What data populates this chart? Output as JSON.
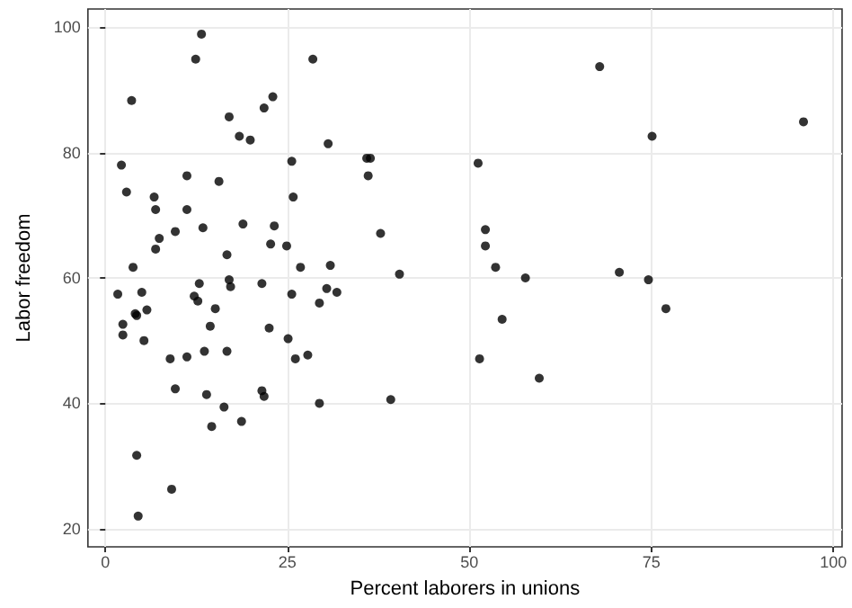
{
  "chart_data": {
    "type": "scatter",
    "xlabel": "Percent laborers in unions",
    "ylabel": "Labor freedom",
    "xlim": [
      -2.4,
      101.2
    ],
    "ylim": [
      17.1,
      102.9
    ],
    "xticks": [
      0,
      25,
      50,
      75,
      100
    ],
    "yticks": [
      20,
      40,
      60,
      80,
      100
    ],
    "grid": true,
    "marker": "circle",
    "series": [
      {
        "color": "#000000",
        "x": [
          13.2,
          12.4,
          28.5,
          3.6,
          23.0,
          21.8,
          17.0,
          18.4,
          19.9,
          30.6,
          2.2,
          25.6,
          35.9,
          36.4,
          36.1,
          51.2,
          2.9,
          6.7,
          11.2,
          15.6,
          6.9,
          25.8,
          11.2,
          9.6,
          13.4,
          18.9,
          23.2,
          7.4,
          6.9,
          22.7,
          24.9,
          16.7,
          3.8,
          26.8,
          30.9,
          37.8,
          52.2,
          52.2,
          53.6,
          40.4,
          57.7,
          70.6,
          74.6,
          77.0,
          67.9,
          75.1,
          95.9,
          12.9,
          17.0,
          17.2,
          21.5,
          1.7,
          5.0,
          12.2,
          12.7,
          25.6,
          30.4,
          31.8,
          29.4,
          4.1,
          4.3,
          5.7,
          15.1,
          2.4,
          2.4,
          5.3,
          14.4,
          22.5,
          25.1,
          8.9,
          11.2,
          13.6,
          16.7,
          26.1,
          27.8,
          9.6,
          13.9,
          21.5,
          21.8,
          16.3,
          29.4,
          14.6,
          18.7,
          4.3,
          9.1,
          4.5,
          51.4,
          59.6,
          39.2,
          54.5
        ],
        "values": [
          98.9,
          94.9,
          94.9,
          88.3,
          88.9,
          87.1,
          85.7,
          82.6,
          82.0,
          81.4,
          78.0,
          78.6,
          79.1,
          79.1,
          76.3,
          78.3,
          73.7,
          72.9,
          76.3,
          75.4,
          70.9,
          72.9,
          70.9,
          67.4,
          68.0,
          68.6,
          68.3,
          66.3,
          64.6,
          65.4,
          65.1,
          63.7,
          61.7,
          61.7,
          62.0,
          67.1,
          67.7,
          65.1,
          61.7,
          60.6,
          60.0,
          60.9,
          59.7,
          55.1,
          93.7,
          82.6,
          84.9,
          59.1,
          59.7,
          58.6,
          59.1,
          57.4,
          57.7,
          57.1,
          56.3,
          57.4,
          58.3,
          57.7,
          56.0,
          54.3,
          54.0,
          54.9,
          55.1,
          52.6,
          50.9,
          50.0,
          52.3,
          52.0,
          50.3,
          47.1,
          47.4,
          48.3,
          48.3,
          47.1,
          47.7,
          42.3,
          41.4,
          42.0,
          41.1,
          39.4,
          40.0,
          36.3,
          37.1,
          31.7,
          26.3,
          22.0,
          47.1,
          44.0,
          40.6,
          53.4
        ]
      }
    ]
  }
}
